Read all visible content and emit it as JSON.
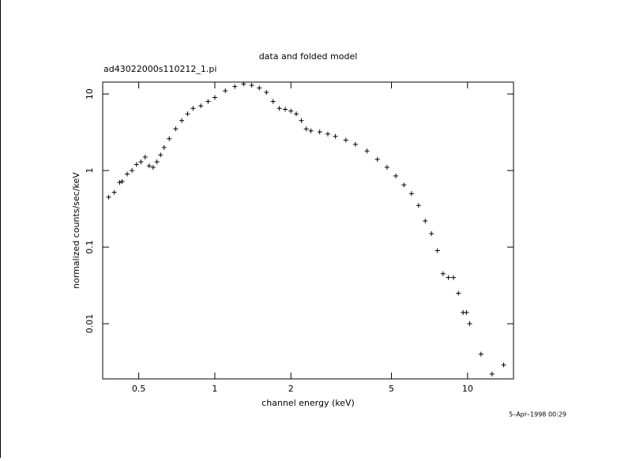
{
  "chart_data": {
    "type": "scatter",
    "log_x": true,
    "log_y": true,
    "color": "#000000",
    "title": "data and folded model",
    "subtitle": "ad43022000s110212_1.pi",
    "x_label": "channel energy (keV)",
    "y_label": "normalized counts/sec/keV",
    "timestamp": "5–Apr–1998 00:29",
    "x": [
      0.38,
      0.4,
      0.42,
      0.43,
      0.45,
      0.47,
      0.49,
      0.51,
      0.53,
      0.55,
      0.57,
      0.59,
      0.61,
      0.63,
      0.66,
      0.7,
      0.74,
      0.78,
      0.82,
      0.88,
      0.94,
      1.0,
      1.1,
      1.2,
      1.3,
      1.4,
      1.5,
      1.6,
      1.7,
      1.8,
      1.9,
      2.0,
      2.1,
      2.2,
      2.3,
      2.4,
      2.6,
      2.8,
      3.0,
      3.3,
      3.6,
      4.0,
      4.4,
      4.8,
      5.2,
      5.6,
      6.0,
      6.4,
      6.8,
      7.2,
      7.6,
      8.0,
      8.4,
      8.8,
      9.2,
      9.6,
      9.9,
      10.2,
      11.3,
      12.5,
      13.9
    ],
    "values": [
      0.45,
      0.52,
      0.7,
      0.72,
      0.9,
      1.0,
      1.2,
      1.3,
      1.5,
      1.15,
      1.1,
      1.3,
      1.6,
      2.0,
      2.6,
      3.5,
      4.5,
      5.5,
      6.5,
      7.0,
      8.0,
      9.0,
      11,
      12.5,
      13.5,
      13,
      12,
      10.5,
      8,
      6.5,
      6.3,
      6.0,
      5.5,
      4.5,
      3.5,
      3.3,
      3.2,
      3.0,
      2.8,
      2.5,
      2.2,
      1.8,
      1.4,
      1.1,
      0.85,
      0.65,
      0.5,
      0.35,
      0.22,
      0.15,
      0.09,
      0.045,
      0.04,
      0.04,
      0.025,
      0.014,
      0.014,
      0.01,
      0.004,
      0.0022,
      0.0029
    ],
    "xlim": [
      0.36,
      15.2
    ],
    "ylim": [
      0.0019,
      14.3
    ],
    "xticks": [
      0.5,
      1,
      2,
      5,
      10
    ],
    "yticks": [
      10,
      1,
      0.1,
      0.01
    ]
  }
}
